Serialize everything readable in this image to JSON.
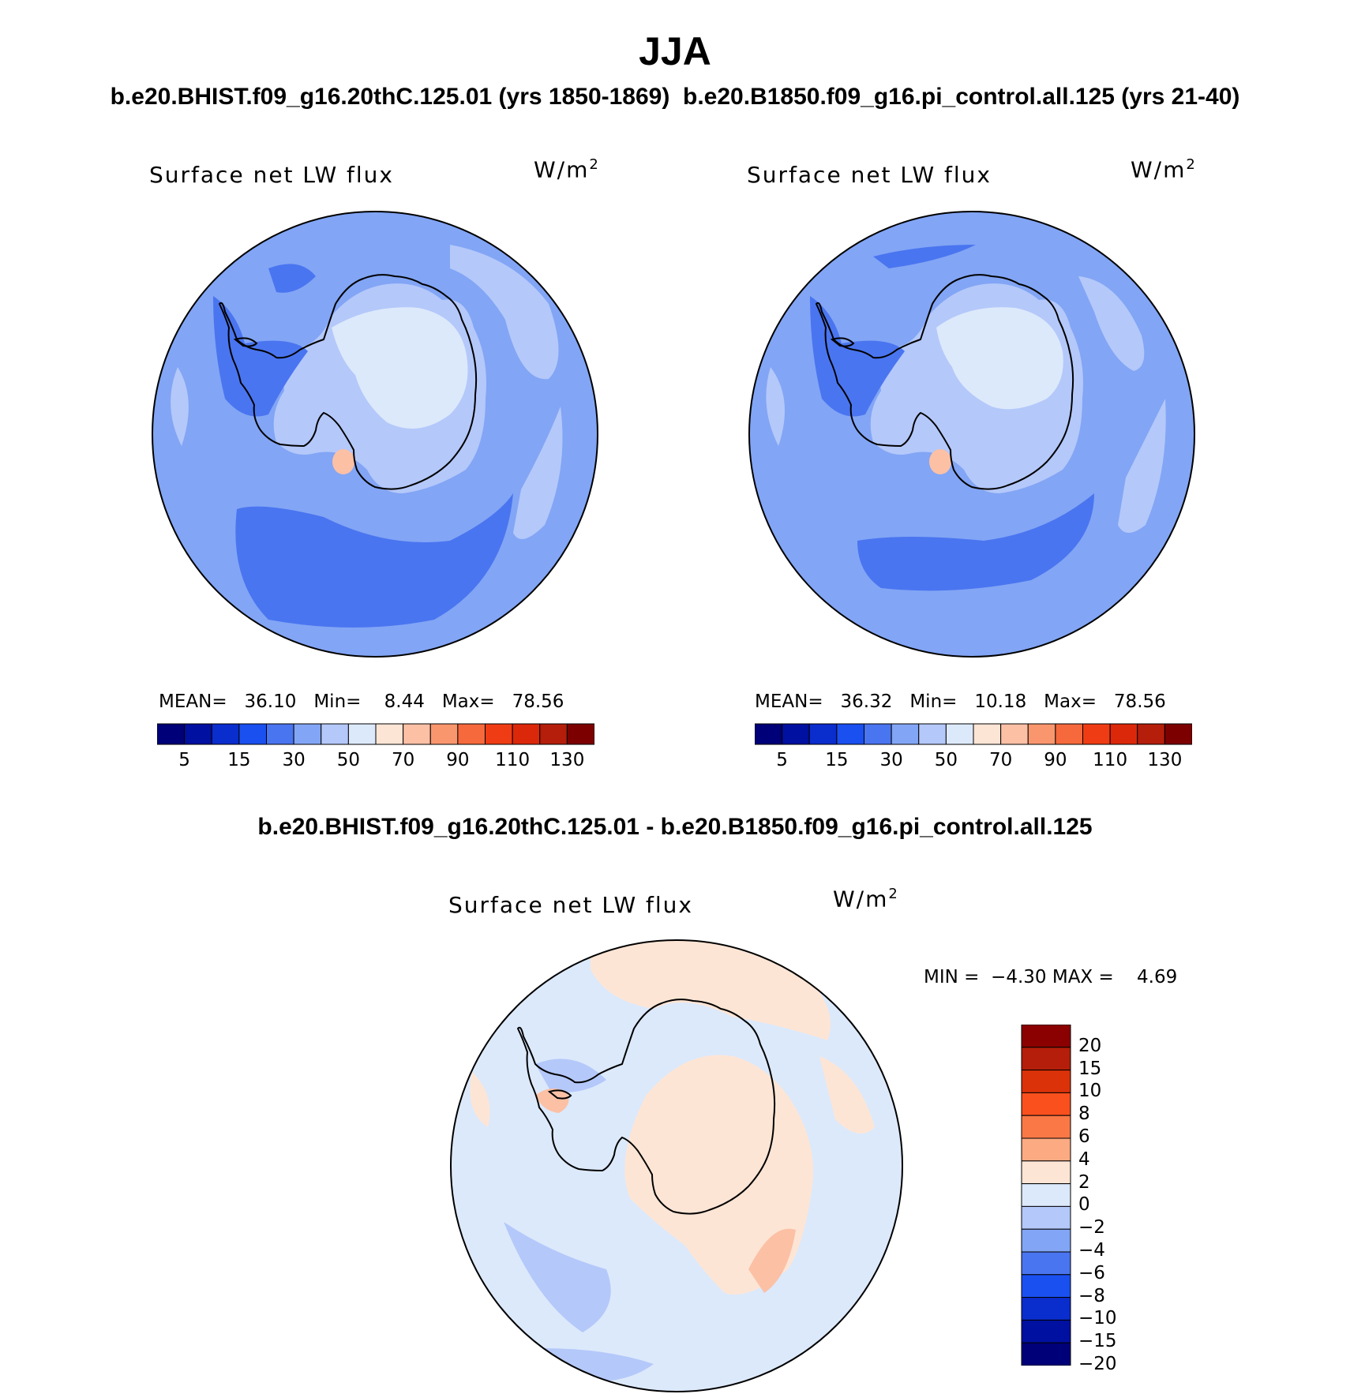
{
  "figure": {
    "season_title": "JJA",
    "subtitle_top": "b.e20.BHIST.f09_g16.20thC.125.01 (yrs 1850-1869)  b.e20.B1850.f09_g16.pi_control.all.125 (yrs 21-40)",
    "subtitle_diff": "b.e20.BHIST.f09_g16.20thC.125.01 - b.e20.B1850.f09_g16.pi_control.all.125"
  },
  "panels": [
    {
      "id": "hist",
      "title": "Surface net LW flux",
      "units": "W/m",
      "units_sup": "2",
      "stats": {
        "mean_label": "MEAN=",
        "mean": "36.10",
        "min_label": "Min=",
        "min": "8.44",
        "max_label": "Max=",
        "max": "78.56"
      }
    },
    {
      "id": "pi_control",
      "title": "Surface net LW flux",
      "units": "W/m",
      "units_sup": "2",
      "stats": {
        "mean_label": "MEAN=",
        "mean": "36.32",
        "min_label": "Min=",
        "min": "10.18",
        "max_label": "Max=",
        "max": "78.56"
      }
    },
    {
      "id": "difference",
      "title": "Surface net LW flux",
      "units": "W/m",
      "units_sup": "2",
      "stats": {
        "min_label": "MIN =",
        "min": "−4.30",
        "max_label": "MAX =",
        "max": "4.69"
      }
    }
  ],
  "colorbar_main": {
    "colors": [
      "#000078",
      "#0010a0",
      "#0a2dcd",
      "#1a50f0",
      "#4a75f0",
      "#82a5f5",
      "#b4c8fa",
      "#dce9fb",
      "#fde5d5",
      "#fcc0a5",
      "#fa966e",
      "#f5693c",
      "#f03c14",
      "#dc280a",
      "#b41e0a",
      "#7d0000"
    ],
    "labels": [
      "5",
      "15",
      "30",
      "50",
      "70",
      "90",
      "110",
      "130"
    ]
  },
  "colorbar_diff": {
    "colors_top_to_bottom": [
      "#8b0000",
      "#b41e0a",
      "#dc320a",
      "#fa501e",
      "#fa7846",
      "#fcaa82",
      "#fde5d5",
      "#dce9fb",
      "#b4c8fa",
      "#82a5f5",
      "#4a75f0",
      "#1a50f0",
      "#0a2dcd",
      "#0010a0",
      "#000078"
    ],
    "labels_top_to_bottom": [
      "20",
      "15",
      "10",
      "8",
      "6",
      "4",
      "2",
      "0",
      "−2",
      "−4",
      "−6",
      "−8",
      "−10",
      "−15",
      "−20"
    ]
  },
  "map_colors": {
    "ocean_base": "#82a5f5",
    "land_light": "#b4c8fa",
    "interior_light": "#dce9fb",
    "coastal_dark": "#4a75f0",
    "warm_spot": "#fcc0a5",
    "diff_base": "#dce9fb",
    "diff_warm": "#fde5d5",
    "diff_cool": "#b4c8fa",
    "diff_warm2": "#fcc0a5"
  }
}
